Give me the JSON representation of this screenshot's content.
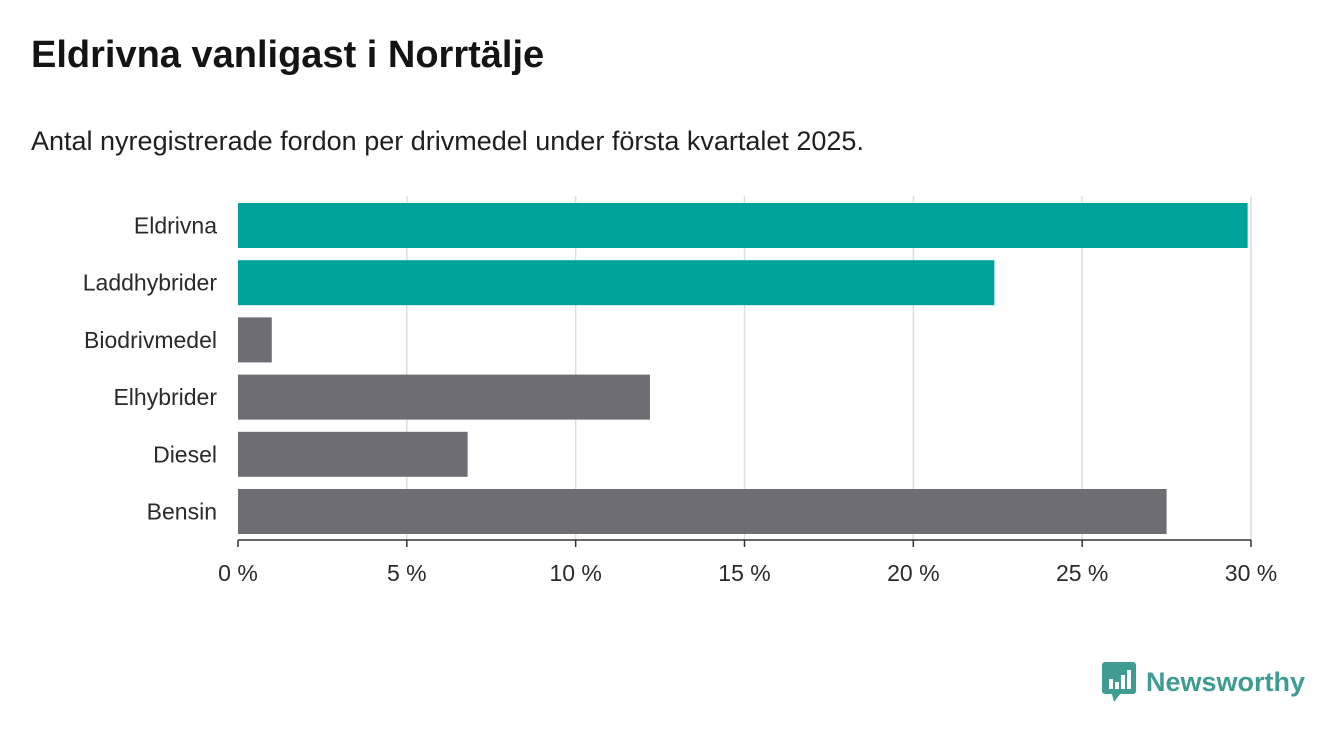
{
  "chart_data": {
    "type": "bar",
    "orientation": "horizontal",
    "title": "Eldrivna vanligast i Norrtälje",
    "subtitle": "Antal nyregistrerade fordon per drivmedel under första kvartalet 2025.",
    "categories": [
      "Eldrivna",
      "Laddhybrider",
      "Biodrivmedel",
      "Elhybrider",
      "Diesel",
      "Bensin"
    ],
    "values": [
      29.9,
      22.4,
      1.0,
      12.2,
      6.8,
      27.5
    ],
    "bar_colors": [
      "#00a39b",
      "#00a39b",
      "#6e6d73",
      "#6e6d73",
      "#6e6d73",
      "#6e6d73"
    ],
    "xlim": [
      0,
      30
    ],
    "xticks": [
      0,
      5,
      10,
      15,
      20,
      25,
      30
    ],
    "tick_suffix": " %",
    "grid": "vertical",
    "xlabel": "",
    "ylabel": ""
  },
  "brand": {
    "name": "Newsworthy",
    "icon": "newsworthy-bars-icon",
    "color": "#3f9c93"
  }
}
